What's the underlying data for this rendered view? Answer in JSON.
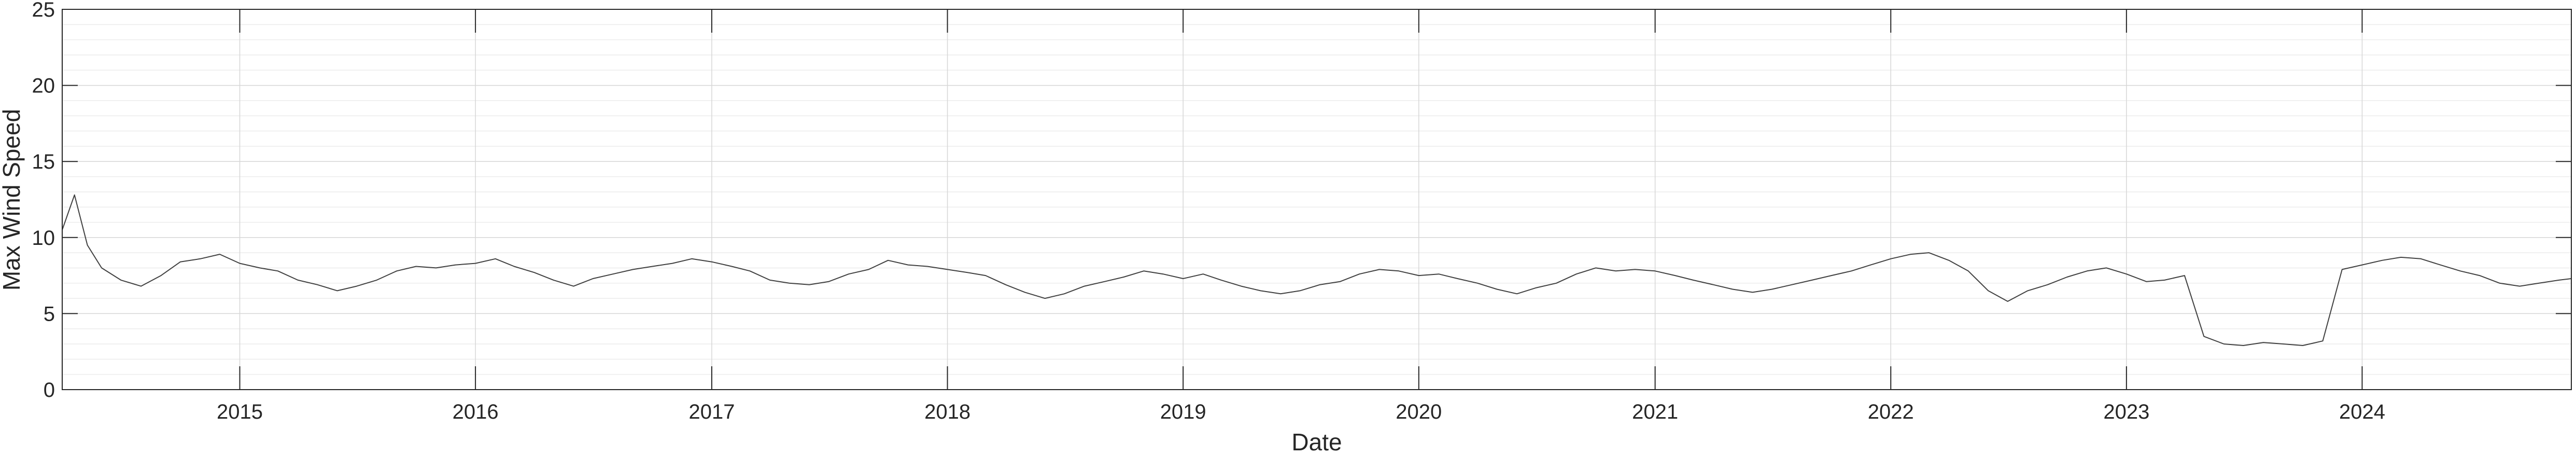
{
  "chart_data": {
    "type": "line",
    "title": "",
    "xlabel": "Date",
    "ylabel": "Max Wind Speed",
    "x_range": [
      "2014-04-01",
      "2024-11-20"
    ],
    "ylim": [
      0,
      25
    ],
    "x_ticks": [
      "2015-01-01",
      "2016-01-01",
      "2017-01-01",
      "2018-01-01",
      "2019-01-01",
      "2020-01-01",
      "2021-01-01",
      "2022-01-01",
      "2023-01-01",
      "2024-01-01"
    ],
    "x_tick_labels": [
      "2015",
      "2016",
      "2017",
      "2018",
      "2019",
      "2020",
      "2021",
      "2022",
      "2023",
      "2024"
    ],
    "y_ticks": [
      0,
      5,
      10,
      15,
      20,
      25
    ],
    "y_tick_labels": [
      "0",
      "5",
      "10",
      "15",
      "20",
      "25"
    ],
    "grid": true,
    "minor_grid": true,
    "line_color": "#404040",
    "series": [
      {
        "x": [
          "2014-04-01",
          "2014-04-20",
          "2014-05-10",
          "2014-06-01",
          "2014-07-01",
          "2014-08-01",
          "2014-09-01",
          "2014-10-01",
          "2014-11-01",
          "2014-12-01",
          "2015-01-01",
          "2015-02-01",
          "2015-03-01",
          "2015-04-01",
          "2015-05-01",
          "2015-06-01",
          "2015-07-01",
          "2015-08-01",
          "2015-09-01",
          "2015-10-01",
          "2015-11-01",
          "2015-12-01",
          "2016-01-01",
          "2016-02-01",
          "2016-03-01",
          "2016-04-01",
          "2016-05-01",
          "2016-06-01",
          "2016-07-01",
          "2016-08-01",
          "2016-09-01",
          "2016-10-01",
          "2016-11-01",
          "2016-12-01",
          "2017-01-01",
          "2017-02-01",
          "2017-03-01",
          "2017-04-01",
          "2017-05-01",
          "2017-06-01",
          "2017-07-01",
          "2017-08-01",
          "2017-09-01",
          "2017-10-01",
          "2017-11-01",
          "2017-12-01",
          "2018-01-01",
          "2018-02-01",
          "2018-03-01",
          "2018-04-01",
          "2018-05-01",
          "2018-06-01",
          "2018-07-01",
          "2018-08-01",
          "2018-09-01",
          "2018-10-01",
          "2018-11-01",
          "2018-12-01",
          "2019-01-01",
          "2019-02-01",
          "2019-03-01",
          "2019-04-01",
          "2019-05-01",
          "2019-06-01",
          "2019-07-01",
          "2019-08-01",
          "2019-09-01",
          "2019-10-01",
          "2019-11-01",
          "2019-12-01",
          "2020-01-01",
          "2020-02-01",
          "2020-03-01",
          "2020-04-01",
          "2020-05-01",
          "2020-06-01",
          "2020-07-01",
          "2020-08-01",
          "2020-09-01",
          "2020-10-01",
          "2020-11-01",
          "2020-12-01",
          "2021-01-01",
          "2021-02-01",
          "2021-03-01",
          "2021-04-01",
          "2021-05-01",
          "2021-06-01",
          "2021-07-01",
          "2021-08-01",
          "2021-09-01",
          "2021-10-01",
          "2021-11-01",
          "2021-12-01",
          "2022-01-01",
          "2022-02-01",
          "2022-03-01",
          "2022-04-01",
          "2022-05-01",
          "2022-06-01",
          "2022-07-01",
          "2022-08-01",
          "2022-09-01",
          "2022-10-01",
          "2022-11-01",
          "2022-12-01",
          "2023-01-01",
          "2023-02-01",
          "2023-03-01",
          "2023-04-01",
          "2023-05-01",
          "2023-06-01",
          "2023-07-01",
          "2023-08-01",
          "2023-09-01",
          "2023-10-01",
          "2023-11-01",
          "2023-12-01",
          "2024-01-01",
          "2024-02-01",
          "2024-03-01",
          "2024-04-01",
          "2024-05-01",
          "2024-06-01",
          "2024-07-01",
          "2024-08-01",
          "2024-09-01",
          "2024-10-01",
          "2024-11-01",
          "2024-11-20"
        ],
        "y": [
          10.5,
          12.8,
          9.5,
          8.0,
          7.2,
          6.8,
          7.5,
          8.4,
          8.6,
          8.9,
          8.3,
          8.0,
          7.8,
          7.2,
          6.9,
          6.5,
          6.8,
          7.2,
          7.8,
          8.1,
          8.0,
          8.2,
          8.3,
          8.6,
          8.1,
          7.7,
          7.2,
          6.8,
          7.3,
          7.6,
          7.9,
          8.1,
          8.3,
          8.6,
          8.4,
          8.1,
          7.8,
          7.2,
          7.0,
          6.9,
          7.1,
          7.6,
          7.9,
          8.5,
          8.2,
          8.1,
          7.9,
          7.7,
          7.5,
          6.9,
          6.4,
          6.0,
          6.3,
          6.8,
          7.1,
          7.4,
          7.8,
          7.6,
          7.3,
          7.6,
          7.2,
          6.8,
          6.5,
          6.3,
          6.5,
          6.9,
          7.1,
          7.6,
          7.9,
          7.8,
          7.5,
          7.6,
          7.3,
          7.0,
          6.6,
          6.3,
          6.7,
          7.0,
          7.6,
          8.0,
          7.8,
          7.9,
          7.8,
          7.5,
          7.2,
          6.9,
          6.6,
          6.4,
          6.6,
          6.9,
          7.2,
          7.5,
          7.8,
          8.2,
          8.6,
          8.9,
          9.0,
          8.5,
          7.8,
          6.5,
          5.8,
          6.5,
          6.9,
          7.4,
          7.8,
          8.0,
          7.6,
          7.1,
          7.2,
          7.5,
          3.5,
          3.0,
          2.9,
          3.1,
          3.0,
          2.9,
          3.2,
          7.9,
          8.2,
          8.5,
          8.7,
          8.6,
          8.2,
          7.8,
          7.5,
          7.0,
          6.8,
          7.0,
          7.2,
          7.3
        ]
      }
    ]
  }
}
